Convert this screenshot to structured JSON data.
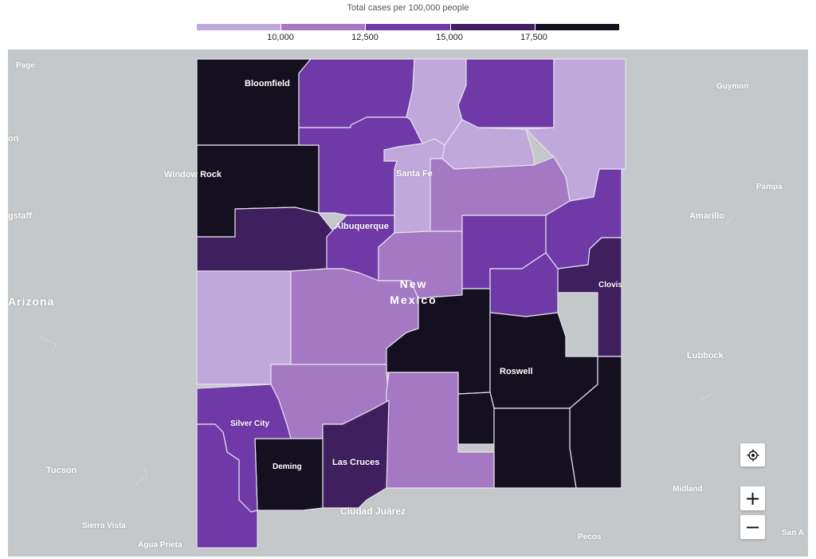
{
  "legend": {
    "title": "Total cases per 100,000 people",
    "colors": [
      "#c0a9da",
      "#a478c2",
      "#7039a8",
      "#3f1f5e",
      "#15101f"
    ],
    "ticks": [
      "10,000",
      "12,500",
      "15,000",
      "17,500"
    ]
  },
  "map": {
    "background_color": "#c5c8ca",
    "border_color": "#e6e1ef",
    "state_label": [
      "New",
      "Mexico"
    ],
    "cities": {
      "page": "Page",
      "bloomfield": "Bloomfield",
      "guymon": "Guymon",
      "window_rock": "Window Rock",
      "santa_fe": "Santa Fe",
      "pampa": "Pampa",
      "flagstaff": "gstaff",
      "amarillo": "Amarillo",
      "albuquerque": "Albuquerque",
      "clovis": "Clovis",
      "arizona": "Arizona",
      "lubbock": "Lubbock",
      "roswell": "Roswell",
      "silver_city": "Silver City",
      "deming": "Deming",
      "las_cruces": "Las Cruces",
      "tucson": "Tucson",
      "midland": "Midland",
      "ciudad_juarez": "Ciudad Juárez",
      "sierra_vista": "Sierra Vista",
      "agua_prieta": "Agua Prieta",
      "pecos": "Pecos",
      "san_a": "San A",
      "left_edge": "on"
    }
  },
  "controls": {
    "locate_icon": "crosshair-icon",
    "zoom_in": "+",
    "zoom_out": "−"
  }
}
